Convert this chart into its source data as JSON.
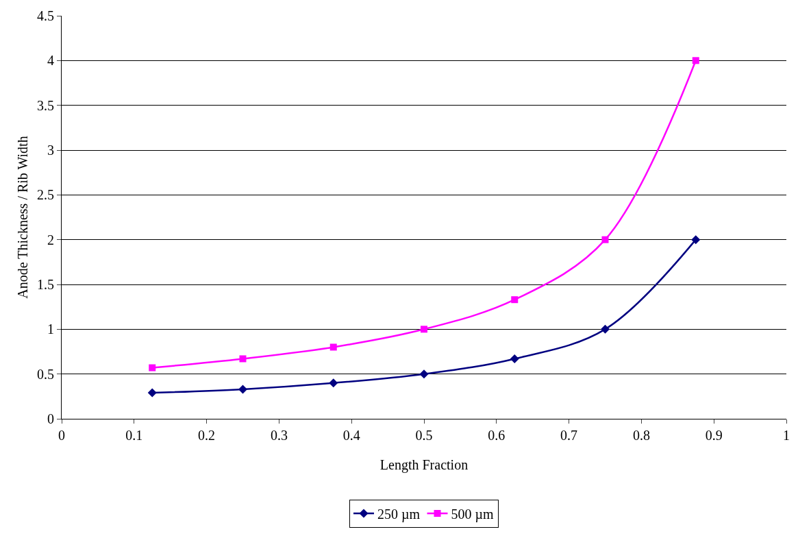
{
  "chart_data": {
    "type": "line",
    "xlabel": "Length Fraction",
    "ylabel": "Anode Thickness / Rib Width",
    "x": [
      0.125,
      0.25,
      0.375,
      0.5,
      0.625,
      0.75,
      0.875
    ],
    "series": [
      {
        "name": "250 µm",
        "color": "#000080",
        "marker": "diamond",
        "values": [
          0.29,
          0.33,
          0.4,
          0.5,
          0.67,
          1,
          2
        ]
      },
      {
        "name": "500 µm",
        "color": "#ff00ff",
        "marker": "square",
        "values": [
          0.57,
          0.67,
          0.8,
          1,
          1.33,
          2,
          4
        ]
      }
    ],
    "xlim": [
      0,
      1
    ],
    "xticks": [
      0,
      0.1,
      0.2,
      0.3,
      0.4,
      0.5,
      0.6,
      0.7,
      0.8,
      0.9,
      1
    ],
    "ylim": [
      0,
      4.5
    ],
    "yticks": [
      0,
      0.5,
      1,
      1.5,
      2,
      2.5,
      3,
      3.5,
      4,
      4.5
    ],
    "grid": "y",
    "legend": "bottom",
    "line_style": "solid"
  }
}
